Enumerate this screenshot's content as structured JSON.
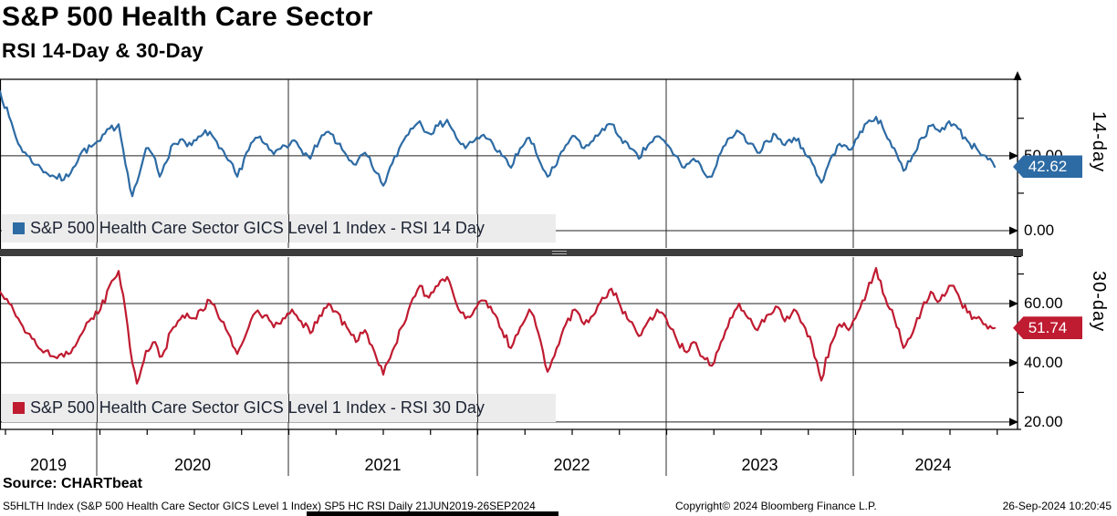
{
  "header": {
    "title": "S&P 500 Health Care Sector",
    "subtitle": "RSI 14-Day & 30-Day"
  },
  "panels": [
    {
      "side_label": "14-day",
      "legend": "S&P 500 Health Care Sector GICS Level 1 Index - RSI 14 Day",
      "badge_label": "42.62",
      "color": "#2d6ba4",
      "tick_labels": [
        {
          "v": 50,
          "label": "50.00"
        },
        {
          "v": 0,
          "label": "0.00"
        }
      ]
    },
    {
      "side_label": "30-day",
      "legend": "S&P 500 Health Care Sector GICS Level 1 Index - RSI 30 Day",
      "badge_label": "51.74",
      "color": "#bf1b31",
      "tick_labels": [
        {
          "v": 60,
          "label": "60.00"
        },
        {
          "v": 40,
          "label": "40.00"
        },
        {
          "v": 20,
          "label": "20.00"
        }
      ]
    }
  ],
  "chart_data": [
    {
      "type": "line",
      "name": "S&P 500 Health Care Sector GICS Level 1 Index - RSI 14 Day",
      "panel": "14-day",
      "color": "#2d6ba4",
      "ylim": [
        0,
        101
      ],
      "yticks_labeled": [
        0,
        50
      ],
      "yticks_minor": [
        25,
        75
      ],
      "last_value": 42.62,
      "jitter": 3.0,
      "x_unit": "px_offset_from_21JUN2019",
      "points": [
        [
          0,
          93
        ],
        [
          10,
          76
        ],
        [
          20,
          58
        ],
        [
          30,
          50
        ],
        [
          40,
          44
        ],
        [
          50,
          39
        ],
        [
          60,
          36
        ],
        [
          70,
          34
        ],
        [
          80,
          42
        ],
        [
          90,
          53
        ],
        [
          100,
          56
        ],
        [
          110,
          60
        ],
        [
          120,
          68
        ],
        [
          130,
          71
        ],
        [
          140,
          38
        ],
        [
          145,
          23
        ],
        [
          150,
          32
        ],
        [
          160,
          55
        ],
        [
          170,
          48
        ],
        [
          175,
          36
        ],
        [
          180,
          44
        ],
        [
          190,
          58
        ],
        [
          200,
          61
        ],
        [
          210,
          57
        ],
        [
          220,
          63
        ],
        [
          230,
          66
        ],
        [
          240,
          55
        ],
        [
          250,
          47
        ],
        [
          260,
          36
        ],
        [
          270,
          52
        ],
        [
          280,
          62
        ],
        [
          290,
          58
        ],
        [
          300,
          51
        ],
        [
          310,
          57
        ],
        [
          320,
          60
        ],
        [
          330,
          54
        ],
        [
          340,
          48
        ],
        [
          350,
          60
        ],
        [
          360,
          66
        ],
        [
          370,
          58
        ],
        [
          380,
          50
        ],
        [
          390,
          44
        ],
        [
          400,
          52
        ],
        [
          410,
          40
        ],
        [
          420,
          30
        ],
        [
          430,
          45
        ],
        [
          440,
          58
        ],
        [
          450,
          68
        ],
        [
          460,
          73
        ],
        [
          470,
          65
        ],
        [
          480,
          70
        ],
        [
          490,
          74
        ],
        [
          500,
          62
        ],
        [
          510,
          55
        ],
        [
          520,
          60
        ],
        [
          530,
          64
        ],
        [
          540,
          58
        ],
        [
          550,
          50
        ],
        [
          560,
          42
        ],
        [
          570,
          55
        ],
        [
          580,
          62
        ],
        [
          590,
          48
        ],
        [
          600,
          36
        ],
        [
          610,
          44
        ],
        [
          620,
          57
        ],
        [
          630,
          63
        ],
        [
          640,
          55
        ],
        [
          650,
          60
        ],
        [
          660,
          68
        ],
        [
          670,
          71
        ],
        [
          680,
          62
        ],
        [
          690,
          55
        ],
        [
          700,
          48
        ],
        [
          710,
          57
        ],
        [
          720,
          63
        ],
        [
          730,
          58
        ],
        [
          740,
          50
        ],
        [
          750,
          42
        ],
        [
          760,
          48
        ],
        [
          770,
          40
        ],
        [
          780,
          36
        ],
        [
          790,
          52
        ],
        [
          800,
          62
        ],
        [
          810,
          66
        ],
        [
          820,
          58
        ],
        [
          830,
          52
        ],
        [
          840,
          60
        ],
        [
          850,
          64
        ],
        [
          860,
          57
        ],
        [
          870,
          62
        ],
        [
          880,
          55
        ],
        [
          890,
          45
        ],
        [
          900,
          32
        ],
        [
          910,
          48
        ],
        [
          920,
          58
        ],
        [
          930,
          54
        ],
        [
          940,
          62
        ],
        [
          950,
          72
        ],
        [
          960,
          76
        ],
        [
          970,
          65
        ],
        [
          980,
          55
        ],
        [
          990,
          40
        ],
        [
          1000,
          50
        ],
        [
          1010,
          62
        ],
        [
          1020,
          70
        ],
        [
          1030,
          66
        ],
        [
          1040,
          73
        ],
        [
          1050,
          68
        ],
        [
          1060,
          60
        ],
        [
          1070,
          55
        ],
        [
          1080,
          50
        ],
        [
          1090,
          42.62
        ]
      ]
    },
    {
      "type": "line",
      "name": "S&P 500 Health Care Sector GICS Level 1 Index - RSI 30 Day",
      "panel": "30-day",
      "color": "#bf1b31",
      "ylim": [
        17.5,
        75.7
      ],
      "yticks_labeled": [
        20,
        40,
        60
      ],
      "yticks_minor": [
        30,
        50,
        70
      ],
      "last_value": 51.74,
      "jitter": 1.7,
      "x_unit": "px_offset_from_21JUN2019",
      "points": [
        [
          0,
          64
        ],
        [
          10,
          60
        ],
        [
          20,
          55
        ],
        [
          30,
          50
        ],
        [
          40,
          46
        ],
        [
          50,
          44
        ],
        [
          60,
          42
        ],
        [
          70,
          42
        ],
        [
          80,
          45
        ],
        [
          90,
          50
        ],
        [
          100,
          55
        ],
        [
          110,
          58
        ],
        [
          120,
          66
        ],
        [
          130,
          71
        ],
        [
          140,
          52
        ],
        [
          145,
          40
        ],
        [
          150,
          33
        ],
        [
          160,
          44
        ],
        [
          170,
          47
        ],
        [
          175,
          42
        ],
        [
          180,
          44
        ],
        [
          190,
          52
        ],
        [
          200,
          56
        ],
        [
          210,
          55
        ],
        [
          220,
          58
        ],
        [
          230,
          61
        ],
        [
          240,
          55
        ],
        [
          250,
          50
        ],
        [
          260,
          43
        ],
        [
          270,
          50
        ],
        [
          280,
          57
        ],
        [
          290,
          56
        ],
        [
          300,
          52
        ],
        [
          310,
          55
        ],
        [
          320,
          58
        ],
        [
          330,
          54
        ],
        [
          340,
          50
        ],
        [
          350,
          56
        ],
        [
          360,
          60
        ],
        [
          370,
          57
        ],
        [
          380,
          52
        ],
        [
          390,
          47
        ],
        [
          400,
          51
        ],
        [
          410,
          44
        ],
        [
          420,
          36
        ],
        [
          430,
          44
        ],
        [
          440,
          52
        ],
        [
          450,
          60
        ],
        [
          460,
          66
        ],
        [
          470,
          62
        ],
        [
          480,
          66
        ],
        [
          490,
          69
        ],
        [
          500,
          60
        ],
        [
          510,
          55
        ],
        [
          520,
          58
        ],
        [
          530,
          61
        ],
        [
          540,
          57
        ],
        [
          550,
          51
        ],
        [
          560,
          45
        ],
        [
          570,
          52
        ],
        [
          580,
          58
        ],
        [
          590,
          50
        ],
        [
          600,
          37
        ],
        [
          610,
          45
        ],
        [
          620,
          53
        ],
        [
          630,
          58
        ],
        [
          640,
          53
        ],
        [
          650,
          56
        ],
        [
          660,
          62
        ],
        [
          670,
          65
        ],
        [
          680,
          59
        ],
        [
          690,
          54
        ],
        [
          700,
          49
        ],
        [
          710,
          54
        ],
        [
          720,
          58
        ],
        [
          730,
          55
        ],
        [
          740,
          49
        ],
        [
          750,
          44
        ],
        [
          760,
          47
        ],
        [
          770,
          42
        ],
        [
          780,
          39
        ],
        [
          790,
          47
        ],
        [
          800,
          55
        ],
        [
          810,
          60
        ],
        [
          820,
          55
        ],
        [
          830,
          51
        ],
        [
          840,
          56
        ],
        [
          850,
          59
        ],
        [
          860,
          54
        ],
        [
          870,
          58
        ],
        [
          880,
          53
        ],
        [
          890,
          46
        ],
        [
          900,
          34
        ],
        [
          910,
          46
        ],
        [
          920,
          53
        ],
        [
          930,
          51
        ],
        [
          940,
          57
        ],
        [
          950,
          64
        ],
        [
          960,
          72
        ],
        [
          970,
          62
        ],
        [
          980,
          55
        ],
        [
          990,
          45
        ],
        [
          1000,
          50
        ],
        [
          1010,
          58
        ],
        [
          1020,
          64
        ],
        [
          1030,
          61
        ],
        [
          1040,
          66
        ],
        [
          1050,
          63
        ],
        [
          1060,
          57
        ],
        [
          1070,
          55
        ],
        [
          1080,
          53
        ],
        [
          1090,
          51.74
        ]
      ]
    }
  ],
  "x_axis": {
    "years": [
      "2019",
      "2020",
      "2021",
      "2022",
      "2023",
      "2024"
    ],
    "range_label": "21JUN2019-26SEP2024"
  },
  "footer": {
    "source": "Source: CHARTbeat",
    "ticker_line": "S5HLTH Index (S&P 500 Health Care Sector GICS Level 1 Index) SP5 HC RSI  Daily 21JUN2019-26SEP2024",
    "copyright": "Copyright© 2024 Bloomberg Finance L.P.",
    "timestamp": "26-Sep-2024 10:20:45"
  },
  "seed": 7
}
